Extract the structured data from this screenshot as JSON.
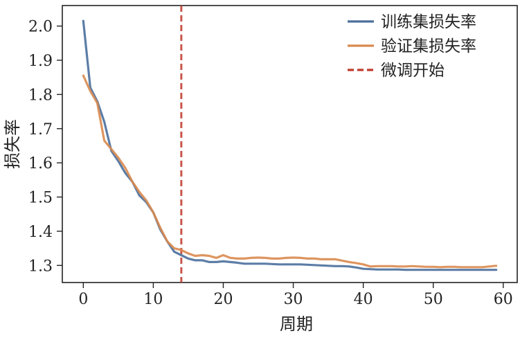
{
  "chart_data": {
    "type": "line",
    "xlabel": "周期",
    "ylabel": "损失率",
    "xlim": [
      -3,
      62
    ],
    "ylim": [
      1.25,
      2.06
    ],
    "xticks": [
      0,
      10,
      20,
      30,
      40,
      50,
      60
    ],
    "yticks": [
      1.3,
      1.4,
      1.5,
      1.6,
      1.7,
      1.8,
      1.9,
      2.0
    ],
    "ytick_labels": [
      "1.3",
      "1.4",
      "1.5",
      "1.6",
      "1.7",
      "1.8",
      "1.9",
      "2.0"
    ],
    "legend_position": "top-right",
    "grid": false,
    "series": [
      {
        "name": "训练集损失率",
        "color": "#4a6f9c",
        "x": [
          0,
          1,
          2,
          3,
          4,
          5,
          6,
          7,
          8,
          9,
          10,
          11,
          12,
          13,
          14,
          15,
          16,
          17,
          18,
          19,
          20,
          21,
          22,
          23,
          24,
          25,
          26,
          27,
          28,
          29,
          30,
          31,
          32,
          33,
          34,
          35,
          36,
          37,
          38,
          39,
          40,
          41,
          42,
          43,
          44,
          45,
          46,
          47,
          48,
          49,
          50,
          51,
          52,
          53,
          54,
          55,
          56,
          57,
          58,
          59
        ],
        "values": [
          2.015,
          1.82,
          1.78,
          1.72,
          1.635,
          1.605,
          1.57,
          1.545,
          1.505,
          1.485,
          1.455,
          1.405,
          1.37,
          1.34,
          1.33,
          1.32,
          1.315,
          1.315,
          1.31,
          1.31,
          1.312,
          1.31,
          1.308,
          1.305,
          1.305,
          1.305,
          1.305,
          1.304,
          1.303,
          1.303,
          1.303,
          1.303,
          1.302,
          1.301,
          1.3,
          1.299,
          1.298,
          1.298,
          1.297,
          1.294,
          1.29,
          1.289,
          1.288,
          1.288,
          1.288,
          1.288,
          1.287,
          1.287,
          1.287,
          1.287,
          1.287,
          1.287,
          1.287,
          1.287,
          1.287,
          1.287,
          1.287,
          1.287,
          1.287,
          1.287
        ]
      },
      {
        "name": "验证集损失率",
        "color": "#d9894f",
        "x": [
          0,
          1,
          2,
          3,
          4,
          5,
          6,
          7,
          8,
          9,
          10,
          11,
          12,
          13,
          14,
          15,
          16,
          17,
          18,
          19,
          20,
          21,
          22,
          23,
          24,
          25,
          26,
          27,
          28,
          29,
          30,
          31,
          32,
          33,
          34,
          35,
          36,
          37,
          38,
          39,
          40,
          41,
          42,
          43,
          44,
          45,
          46,
          47,
          48,
          49,
          50,
          51,
          52,
          53,
          54,
          55,
          56,
          57,
          58,
          59
        ],
        "values": [
          1.855,
          1.81,
          1.775,
          1.665,
          1.64,
          1.615,
          1.585,
          1.545,
          1.515,
          1.49,
          1.455,
          1.41,
          1.37,
          1.35,
          1.345,
          1.335,
          1.328,
          1.33,
          1.328,
          1.322,
          1.33,
          1.322,
          1.32,
          1.32,
          1.322,
          1.323,
          1.322,
          1.32,
          1.32,
          1.322,
          1.323,
          1.322,
          1.32,
          1.32,
          1.318,
          1.318,
          1.318,
          1.314,
          1.31,
          1.307,
          1.303,
          1.297,
          1.298,
          1.298,
          1.298,
          1.297,
          1.297,
          1.298,
          1.297,
          1.296,
          1.296,
          1.295,
          1.296,
          1.296,
          1.295,
          1.295,
          1.295,
          1.295,
          1.297,
          1.299
        ]
      }
    ],
    "vlines": [
      {
        "name": "微调开始",
        "x": 14,
        "color": "#c0392b"
      }
    ]
  }
}
